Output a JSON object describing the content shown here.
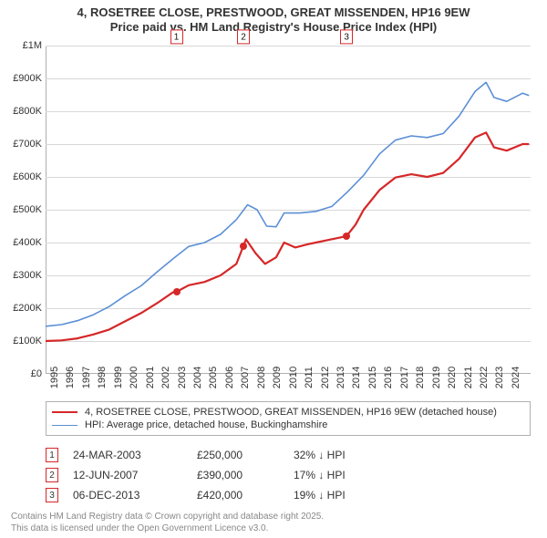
{
  "title": {
    "line1": "4, ROSETREE CLOSE, PRESTWOOD, GREAT MISSENDEN, HP16 9EW",
    "line2": "Price paid vs. HM Land Registry's House Price Index (HPI)",
    "fontsize": 13,
    "fontweight": "bold"
  },
  "chart": {
    "type": "line",
    "background_color": "#ffffff",
    "grid_color": "#d8d8d8",
    "axis_color": "#b0b0b0",
    "xlim": [
      1995,
      2025.5
    ],
    "ylim": [
      0,
      1000000
    ],
    "ytick_step": 100000,
    "yticks": [
      {
        "v": 0,
        "label": "£0"
      },
      {
        "v": 100000,
        "label": "£100K"
      },
      {
        "v": 200000,
        "label": "£200K"
      },
      {
        "v": 300000,
        "label": "£300K"
      },
      {
        "v": 400000,
        "label": "£400K"
      },
      {
        "v": 500000,
        "label": "£500K"
      },
      {
        "v": 600000,
        "label": "£600K"
      },
      {
        "v": 700000,
        "label": "£700K"
      },
      {
        "v": 800000,
        "label": "£800K"
      },
      {
        "v": 900000,
        "label": "£900K"
      },
      {
        "v": 1000000,
        "label": "£1M"
      }
    ],
    "xticks": [
      1995,
      1996,
      1997,
      1998,
      1999,
      2000,
      2001,
      2002,
      2003,
      2004,
      2005,
      2006,
      2007,
      2008,
      2009,
      2010,
      2011,
      2012,
      2013,
      2014,
      2015,
      2016,
      2017,
      2018,
      2019,
      2020,
      2021,
      2022,
      2023,
      2024
    ],
    "label_fontsize": 11,
    "series": {
      "property": {
        "label": "4, ROSETREE CLOSE, PRESTWOOD, GREAT MISSENDEN, HP16 9EW (detached house)",
        "color": "#d62728",
        "line_width": 2.2,
        "points": [
          [
            1995.0,
            100000
          ],
          [
            1996.0,
            102000
          ],
          [
            1997.0,
            108000
          ],
          [
            1998.0,
            120000
          ],
          [
            1999.0,
            135000
          ],
          [
            2000.0,
            160000
          ],
          [
            2001.0,
            185000
          ],
          [
            2002.0,
            215000
          ],
          [
            2003.0,
            248000
          ],
          [
            2003.23,
            250000
          ],
          [
            2004.0,
            270000
          ],
          [
            2005.0,
            280000
          ],
          [
            2006.0,
            300000
          ],
          [
            2007.0,
            335000
          ],
          [
            2007.44,
            390000
          ],
          [
            2007.6,
            410000
          ],
          [
            2008.2,
            368000
          ],
          [
            2008.8,
            335000
          ],
          [
            2009.5,
            355000
          ],
          [
            2010.0,
            400000
          ],
          [
            2010.7,
            385000
          ],
          [
            2011.5,
            395000
          ],
          [
            2012.0,
            400000
          ],
          [
            2012.8,
            408000
          ],
          [
            2013.5,
            415000
          ],
          [
            2013.93,
            420000
          ],
          [
            2014.5,
            455000
          ],
          [
            2015.0,
            500000
          ],
          [
            2016.0,
            560000
          ],
          [
            2017.0,
            598000
          ],
          [
            2018.0,
            608000
          ],
          [
            2019.0,
            600000
          ],
          [
            2020.0,
            612000
          ],
          [
            2021.0,
            655000
          ],
          [
            2022.0,
            720000
          ],
          [
            2022.7,
            735000
          ],
          [
            2023.2,
            690000
          ],
          [
            2024.0,
            680000
          ],
          [
            2025.0,
            700000
          ],
          [
            2025.4,
            700000
          ]
        ]
      },
      "hpi": {
        "label": "HPI: Average price, detached house, Buckinghamshire",
        "color": "#5b8fd6",
        "line_width": 1.6,
        "points": [
          [
            1995.0,
            145000
          ],
          [
            1996.0,
            150000
          ],
          [
            1997.0,
            162000
          ],
          [
            1998.0,
            180000
          ],
          [
            1999.0,
            205000
          ],
          [
            2000.0,
            238000
          ],
          [
            2001.0,
            268000
          ],
          [
            2002.0,
            310000
          ],
          [
            2003.0,
            350000
          ],
          [
            2004.0,
            388000
          ],
          [
            2005.0,
            400000
          ],
          [
            2006.0,
            425000
          ],
          [
            2007.0,
            470000
          ],
          [
            2007.7,
            515000
          ],
          [
            2008.3,
            500000
          ],
          [
            2008.9,
            450000
          ],
          [
            2009.5,
            448000
          ],
          [
            2010.0,
            490000
          ],
          [
            2011.0,
            490000
          ],
          [
            2012.0,
            495000
          ],
          [
            2013.0,
            510000
          ],
          [
            2014.0,
            555000
          ],
          [
            2015.0,
            605000
          ],
          [
            2016.0,
            670000
          ],
          [
            2017.0,
            712000
          ],
          [
            2018.0,
            725000
          ],
          [
            2019.0,
            720000
          ],
          [
            2020.0,
            732000
          ],
          [
            2021.0,
            785000
          ],
          [
            2022.0,
            860000
          ],
          [
            2022.7,
            888000
          ],
          [
            2023.2,
            842000
          ],
          [
            2024.0,
            830000
          ],
          [
            2025.0,
            855000
          ],
          [
            2025.4,
            848000
          ]
        ]
      }
    },
    "sale_markers": [
      {
        "n": "1",
        "x": 2003.23,
        "y": 250000
      },
      {
        "n": "2",
        "x": 2007.44,
        "y": 390000
      },
      {
        "n": "3",
        "x": 2013.93,
        "y": 420000
      }
    ]
  },
  "legend": {
    "border_color": "#b0b0b0",
    "fontsize": 11
  },
  "sales_table": {
    "rows": [
      {
        "n": "1",
        "date": "24-MAR-2003",
        "price": "£250,000",
        "delta": "32% ↓ HPI"
      },
      {
        "n": "2",
        "date": "12-JUN-2007",
        "price": "£390,000",
        "delta": "17% ↓ HPI"
      },
      {
        "n": "3",
        "date": "06-DEC-2013",
        "price": "£420,000",
        "delta": "19% ↓ HPI"
      }
    ]
  },
  "footer": {
    "line1": "Contains HM Land Registry data © Crown copyright and database right 2025.",
    "line2": "This data is licensed under the Open Government Licence v3.0.",
    "color": "#888888",
    "fontsize": 10
  }
}
